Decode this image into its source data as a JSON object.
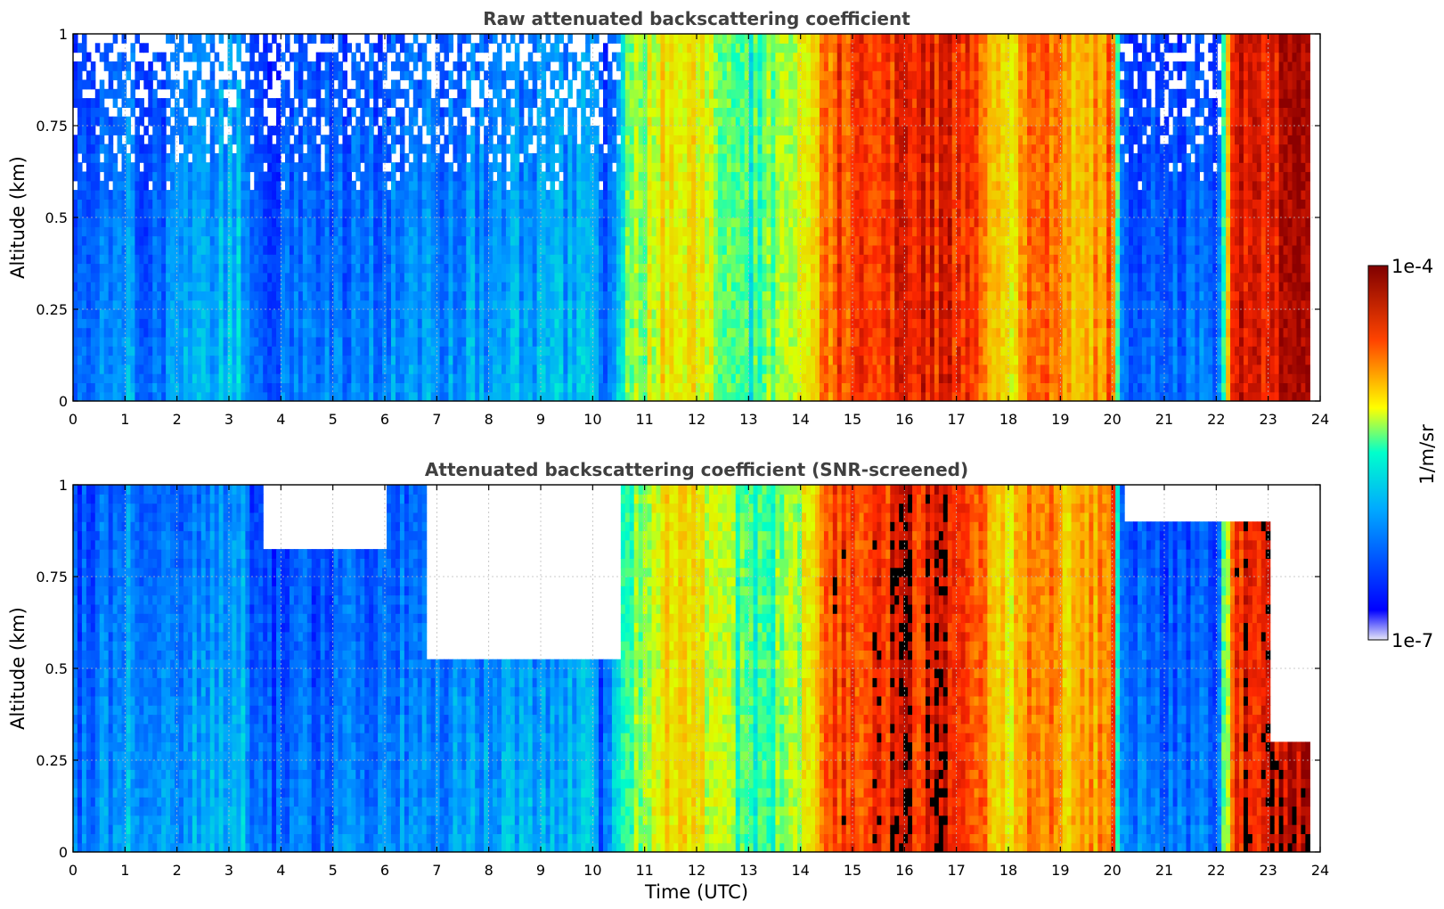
{
  "colorbar": {
    "label": "1/m/sr",
    "max_label": "1e-4",
    "min_label": "1e-7",
    "scale": "log",
    "range": [
      1e-07,
      0.0001
    ],
    "colormap": "jet",
    "colors": [
      "#e6e6f8",
      "#0000ff",
      "#00ffff",
      "#ffff00",
      "#ff0000",
      "#800000"
    ]
  },
  "chart_data": [
    {
      "type": "heatmap",
      "title": "Raw attenuated backscattering coefficient",
      "xlabel": "",
      "ylabel": "Altitude (km)",
      "xlim": [
        0,
        24
      ],
      "ylim": [
        0,
        1
      ],
      "xticks": [
        "0",
        "1",
        "2",
        "3",
        "4",
        "5",
        "6",
        "7",
        "8",
        "9",
        "10",
        "11",
        "12",
        "13",
        "14",
        "15",
        "16",
        "17",
        "18",
        "19",
        "20",
        "21",
        "22",
        "23",
        "24"
      ],
      "yticks": [
        "0",
        "0.25",
        "0.5",
        "0.75",
        "1"
      ],
      "grid": true,
      "data_extent_x": [
        0,
        23.8
      ],
      "profile": [
        {
          "t": 0.0,
          "level": 0.28
        },
        {
          "t": 1.0,
          "level": 0.38
        },
        {
          "t": 1.2,
          "level": 0.28
        },
        {
          "t": 3.2,
          "level": 0.42
        },
        {
          "t": 3.4,
          "level": 0.26
        },
        {
          "t": 4.0,
          "level": 0.28
        },
        {
          "t": 5.0,
          "level": 0.3
        },
        {
          "t": 10.0,
          "level": 0.4
        },
        {
          "t": 10.1,
          "level": 0.26
        },
        {
          "t": 10.7,
          "level": 0.55
        },
        {
          "t": 11.5,
          "level": 0.7
        },
        {
          "t": 12.0,
          "level": 0.65
        },
        {
          "t": 13.0,
          "level": 0.5
        },
        {
          "t": 14.0,
          "level": 0.6
        },
        {
          "t": 14.6,
          "level": 0.85
        },
        {
          "t": 16.0,
          "level": 0.9
        },
        {
          "t": 17.0,
          "level": 0.9
        },
        {
          "t": 18.0,
          "level": 0.65
        },
        {
          "t": 18.5,
          "level": 0.85
        },
        {
          "t": 19.2,
          "level": 0.7
        },
        {
          "t": 20.0,
          "level": 0.82
        },
        {
          "t": 20.1,
          "level": 0.3
        },
        {
          "t": 22.0,
          "level": 0.28
        },
        {
          "t": 22.3,
          "level": 0.9
        },
        {
          "t": 23.8,
          "level": 0.95
        }
      ]
    },
    {
      "type": "heatmap",
      "title": "Attenuated backscattering coefficient (SNR-screened)",
      "xlabel": "Time (UTC)",
      "ylabel": "Altitude (km)",
      "xlim": [
        0,
        24
      ],
      "ylim": [
        0,
        1
      ],
      "xticks": [
        "0",
        "1",
        "2",
        "3",
        "4",
        "5",
        "6",
        "7",
        "8",
        "9",
        "10",
        "11",
        "12",
        "13",
        "14",
        "15",
        "16",
        "17",
        "18",
        "19",
        "20",
        "21",
        "22",
        "23",
        "24"
      ],
      "yticks": [
        "0",
        "0.25",
        "0.5",
        "0.75",
        "1"
      ],
      "grid": true,
      "data_extent_x": [
        0,
        23.8
      ],
      "screened_regions": [
        {
          "t_start": 3.6,
          "t_end": 6.0,
          "alt_min": 0.82
        },
        {
          "t_start": 6.8,
          "t_end": 10.5,
          "alt_min": 0.52
        },
        {
          "t_start": 20.2,
          "t_end": 23.0,
          "alt_min": 0.88
        },
        {
          "t_start": 23.0,
          "t_end": 23.8,
          "alt_min": 0.3
        }
      ]
    }
  ]
}
